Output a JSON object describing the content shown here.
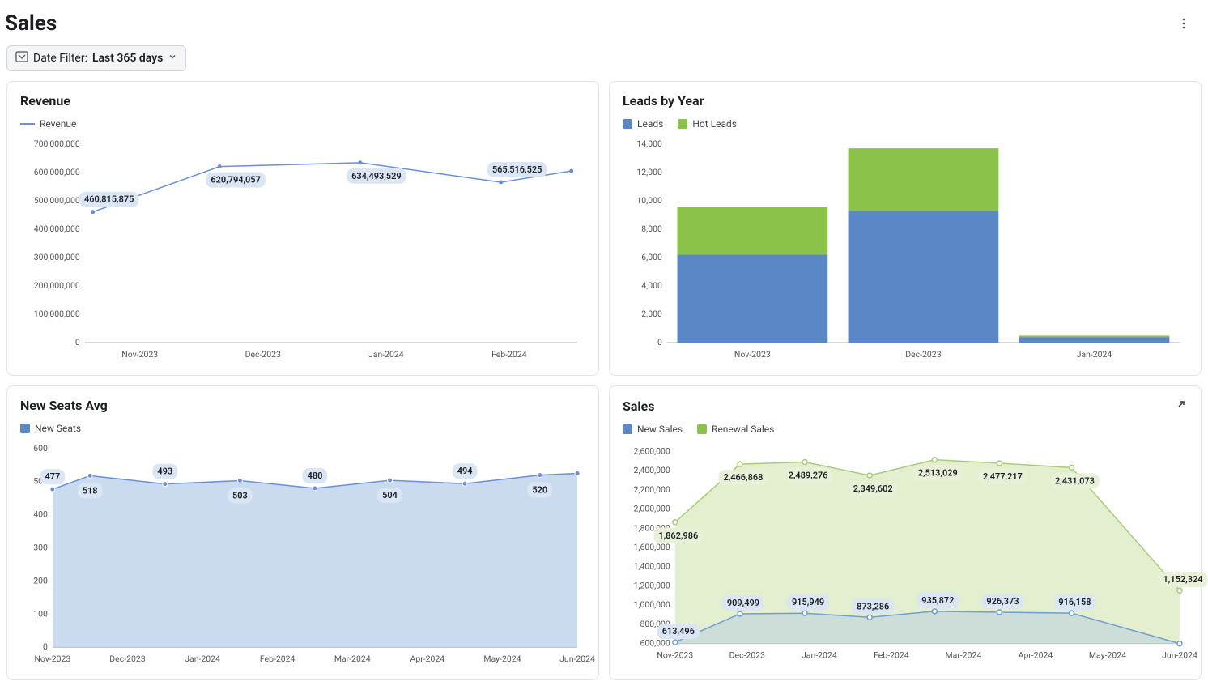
{
  "header": {
    "title": "Sales"
  },
  "filter": {
    "label": "Date Filter:",
    "value": "Last 365 days"
  },
  "palette": {
    "grid": "#ececec",
    "text": "#1b1f23",
    "revenue_line": "#6a8fd8",
    "leads": "#5a88c6",
    "hot_leads": "#8bc24a",
    "new_seats_line": "#6a8fd8",
    "new_seats_fill": "#c1d3ec",
    "new_sales_line": "#6f9ed4",
    "new_sales_fill": "#b8cde3",
    "renewal_line": "#a8cc7a",
    "renewal_fill": "#dcebc3",
    "pill_fill": "#dbe6f5"
  },
  "panels": {
    "revenue": {
      "title": "Revenue",
      "type": "line",
      "legend": [
        {
          "label": "Revenue",
          "color": "#6a8fd8",
          "kind": "line"
        }
      ],
      "y": {
        "min": 0,
        "max": 700000000,
        "step": 100000000,
        "ticks": [
          "0",
          "100,000,000",
          "200,000,000",
          "300,000,000",
          "400,000,000",
          "500,000,000",
          "600,000,000",
          "700,000,000"
        ]
      },
      "x_categories": [
        "Nov-2023",
        "Dec-2023",
        "Jan-2024",
        "Feb-2024"
      ],
      "points": [
        {
          "xi": 0,
          "y": 460815875,
          "label": "460,815,875",
          "label_pos": "above"
        },
        {
          "xi": 0.9,
          "y": 620794057,
          "label": "620,794,057",
          "label_pos": "below"
        },
        {
          "xi": 1.9,
          "y": 634493529,
          "label": "634,493,529",
          "label_pos": "below"
        },
        {
          "xi": 2.9,
          "y": 565516525,
          "label": "565,516,525",
          "label_pos": "above"
        },
        {
          "xi": 3.4,
          "y": 605000000
        }
      ],
      "line_color": "#6a8fd8",
      "line_width": 1.5,
      "marker_r": 2.5,
      "fontsize_title": 16,
      "fontsize_tick": 11
    },
    "leads": {
      "title": "Leads by Year",
      "type": "stacked-bar",
      "legend": [
        {
          "label": "Leads",
          "color": "#5a88c6",
          "kind": "square"
        },
        {
          "label": "Hot Leads",
          "color": "#8bc24a",
          "kind": "square"
        }
      ],
      "y": {
        "min": 0,
        "max": 14000,
        "step": 2000,
        "ticks": [
          "0",
          "2,000",
          "4,000",
          "6,000",
          "8,000",
          "10,000",
          "12,000",
          "14,000"
        ]
      },
      "x_categories": [
        "Nov-2023",
        "Dec-2023",
        "Jan-2024"
      ],
      "series": {
        "leads": {
          "color": "#5a88c6",
          "values": [
            6200,
            9300,
            400
          ]
        },
        "hot_leads": {
          "color": "#8bc24a",
          "values": [
            3400,
            4400,
            100
          ]
        }
      },
      "bar_width": 0.88
    },
    "new_seats": {
      "title": "New Seats Avg",
      "type": "area-line",
      "legend": [
        {
          "label": "New Seats",
          "color": "#5a88c6",
          "kind": "square"
        }
      ],
      "y": {
        "min": 0,
        "max": 600,
        "step": 100,
        "ticks": [
          "0",
          "100",
          "200",
          "300",
          "400",
          "500",
          "600"
        ]
      },
      "x_categories": [
        "Nov-2023",
        "Dec-2023",
        "Jan-2024",
        "Feb-2024",
        "Mar-2024",
        "Apr-2024",
        "May-2024",
        "Jun-2024"
      ],
      "points": [
        {
          "xi": 0,
          "y": 477,
          "label": "477",
          "label_pos": "above"
        },
        {
          "xi": 0.5,
          "y": 518,
          "label": "518",
          "label_pos": "below"
        },
        {
          "xi": 1.5,
          "y": 493,
          "label": "493",
          "label_pos": "above"
        },
        {
          "xi": 2.5,
          "y": 503,
          "label": "503",
          "label_pos": "below"
        },
        {
          "xi": 3.5,
          "y": 480,
          "label": "480",
          "label_pos": "above"
        },
        {
          "xi": 4.5,
          "y": 504,
          "label": "504",
          "label_pos": "below"
        },
        {
          "xi": 5.5,
          "y": 494,
          "label": "494",
          "label_pos": "above"
        },
        {
          "xi": 6.5,
          "y": 520,
          "label": "520",
          "label_pos": "below"
        },
        {
          "xi": 7,
          "y": 525
        }
      ],
      "line_color": "#6a8fd8",
      "fill_color": "#c1d3ec",
      "line_width": 1.5,
      "marker_r": 3
    },
    "sales": {
      "title": "Sales",
      "type": "multi-area",
      "expandable": true,
      "legend": [
        {
          "label": "New Sales",
          "color": "#5a88c6",
          "kind": "square"
        },
        {
          "label": "Renewal Sales",
          "color": "#8bc24a",
          "kind": "square"
        }
      ],
      "y": {
        "min": 600000,
        "max": 2600000,
        "step": 200000,
        "ticks": [
          "600,000",
          "800,000",
          "1,000,000",
          "1,200,000",
          "1,400,000",
          "1,600,000",
          "1,800,000",
          "2,000,000",
          "2,200,000",
          "2,400,000",
          "2,600,000"
        ]
      },
      "x_categories": [
        "Nov-2023",
        "Dec-2023",
        "Jan-2024",
        "Feb-2024",
        "Mar-2024",
        "Apr-2024",
        "May-2024",
        "Jun-2024"
      ],
      "series": {
        "renewal": {
          "line_color": "#a8cc7a",
          "fill_color": "#dcebc3",
          "points": [
            {
              "xi": 0,
              "y": 1862986,
              "label": "1,862,986",
              "label_pos": "below"
            },
            {
              "xi": 0.9,
              "y": 2466868,
              "label": "2,466,868",
              "label_pos": "below"
            },
            {
              "xi": 1.8,
              "y": 2489276,
              "label": "2,489,276",
              "label_pos": "below"
            },
            {
              "xi": 2.7,
              "y": 2349602,
              "label": "2,349,602",
              "label_pos": "below"
            },
            {
              "xi": 3.6,
              "y": 2513029,
              "label": "2,513,029",
              "label_pos": "below"
            },
            {
              "xi": 4.5,
              "y": 2477217,
              "label": "2,477,217",
              "label_pos": "below"
            },
            {
              "xi": 5.5,
              "y": 2431073,
              "label": "2,431,073",
              "label_pos": "below"
            },
            {
              "xi": 7,
              "y": 1152324,
              "label": "1,152,324",
              "label_pos": "above"
            }
          ]
        },
        "new_sales": {
          "line_color": "#6f9ed4",
          "fill_color": "#b8cde3",
          "fill_opacity": 0.5,
          "points": [
            {
              "xi": 0,
              "y": 613496,
              "label": "613,496",
              "label_pos": "above"
            },
            {
              "xi": 0.9,
              "y": 909499,
              "label": "909,499",
              "label_pos": "above"
            },
            {
              "xi": 1.8,
              "y": 915949,
              "label": "915,949",
              "label_pos": "above"
            },
            {
              "xi": 2.7,
              "y": 873286,
              "label": "873,286",
              "label_pos": "above"
            },
            {
              "xi": 3.6,
              "y": 935872,
              "label": "935,872",
              "label_pos": "above"
            },
            {
              "xi": 4.5,
              "y": 926373,
              "label": "926,373",
              "label_pos": "above"
            },
            {
              "xi": 5.5,
              "y": 916158,
              "label": "916,158",
              "label_pos": "above"
            },
            {
              "xi": 7,
              "y": 600000
            }
          ]
        }
      }
    }
  }
}
